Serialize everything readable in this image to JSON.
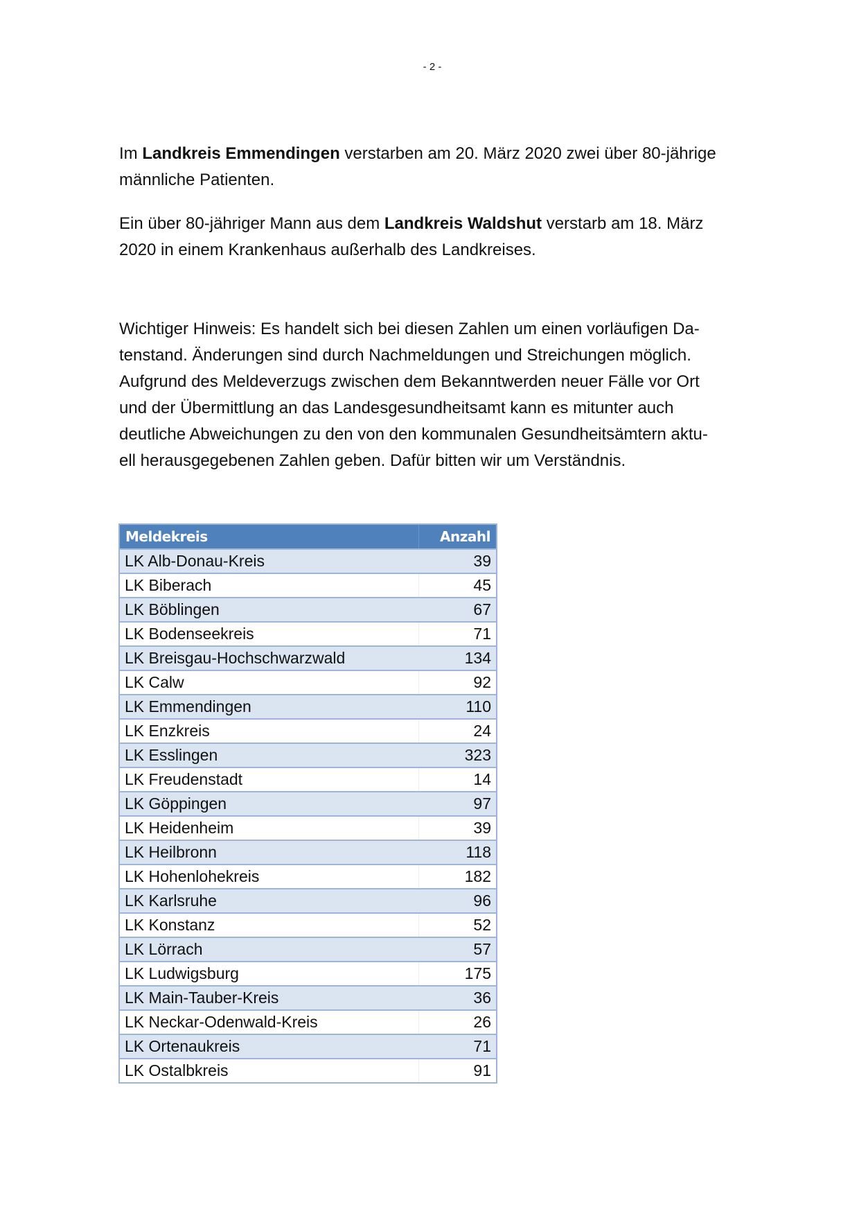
{
  "page_number": "- 2 -",
  "paragraphs": [
    {
      "lines": [
        [
          {
            "t": "Im "
          },
          {
            "t": "Landkreis Emmendingen",
            "b": true
          },
          {
            "t": " verstarben am 20. März 2020 zwei über 80-jährige"
          }
        ],
        [
          {
            "t": "männliche Patienten."
          }
        ]
      ]
    },
    {
      "lines": [
        [
          {
            "t": "Ein über 80-jähriger Mann aus dem "
          },
          {
            "t": "Landkreis Waldshut",
            "b": true
          },
          {
            "t": " verstarb am 18. März"
          }
        ],
        [
          {
            "t": "2020 in einem Krankenhaus außerhalb des Landkreises."
          }
        ]
      ]
    },
    {
      "lines": [
        [
          {
            "t": "Wichtiger Hinweis: Es handelt sich bei diesen Zahlen um einen vorläufigen Da-"
          }
        ],
        [
          {
            "t": "tenstand. Änderungen sind durch Nachmeldungen und Streichungen möglich."
          }
        ],
        [
          {
            "t": "Aufgrund des Meldeverzugs zwischen dem Bekanntwerden neuer Fälle vor Ort"
          }
        ],
        [
          {
            "t": "und der Übermittlung an das Landesgesundheitsamt kann es mitunter auch"
          }
        ],
        [
          {
            "t": "deutliche Abweichungen zu den von den kommunalen Gesundheitsämtern aktu-"
          }
        ],
        [
          {
            "t": "ell herausgegebenen Zahlen geben. Dafür bitten wir um Verständnis."
          }
        ]
      ]
    }
  ],
  "table": {
    "headers": [
      "Meldekreis",
      "Anzahl"
    ],
    "header_color": "#4f81bd",
    "stripe_color": "#dbe5f1",
    "rows": [
      [
        "LK Alb-Donau-Kreis",
        "39"
      ],
      [
        "LK Biberach",
        "45"
      ],
      [
        "LK Böblingen",
        "67"
      ],
      [
        "LK Bodenseekreis",
        "71"
      ],
      [
        "LK Breisgau-Hochschwarzwald",
        "134"
      ],
      [
        "LK Calw",
        "92"
      ],
      [
        "LK Emmendingen",
        "110"
      ],
      [
        "LK Enzkreis",
        "24"
      ],
      [
        "LK Esslingen",
        "323"
      ],
      [
        "LK Freudenstadt",
        "14"
      ],
      [
        "LK Göppingen",
        "97"
      ],
      [
        "LK Heidenheim",
        "39"
      ],
      [
        "LK Heilbronn",
        "118"
      ],
      [
        "LK Hohenlohekreis",
        "182"
      ],
      [
        "LK Karlsruhe",
        "96"
      ],
      [
        "LK Konstanz",
        "52"
      ],
      [
        "LK Lörrach",
        "57"
      ],
      [
        "LK Ludwigsburg",
        "175"
      ],
      [
        "LK Main-Tauber-Kreis",
        "36"
      ],
      [
        "LK Neckar-Odenwald-Kreis",
        "26"
      ],
      [
        "LK Ortenaukreis",
        "71"
      ],
      [
        "LK Ostalbkreis",
        "91"
      ]
    ]
  }
}
